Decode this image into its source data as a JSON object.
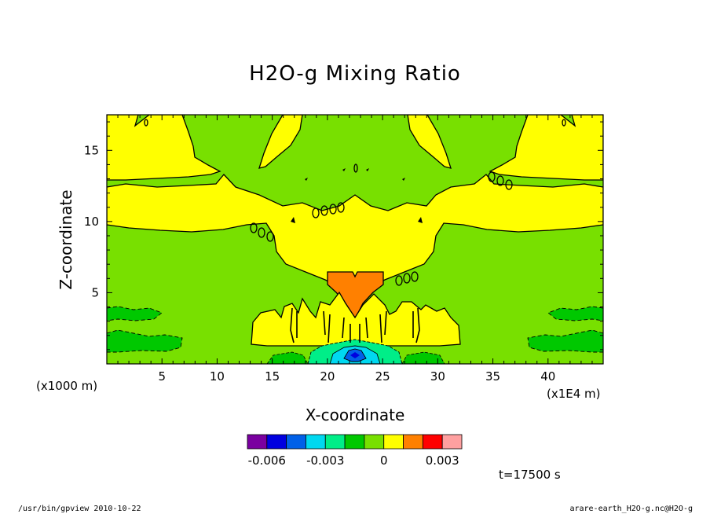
{
  "chart_data": {
    "type": "heatmap",
    "title": "H2O-g Mixing Ratio",
    "xlabel": "X-coordinate",
    "ylabel": "Z-coordinate",
    "x_unit_left": "(x1000 m)",
    "x_unit_right": "(x1E4 m)",
    "xlim": [
      0,
      45
    ],
    "ylim": [
      0,
      17.5
    ],
    "xticks": [
      "5",
      "10",
      "15",
      "20",
      "25",
      "30",
      "35",
      "40"
    ],
    "xtick_values": [
      5,
      10,
      15,
      20,
      25,
      30,
      35,
      40
    ],
    "yticks": [
      "5",
      "10",
      "15"
    ],
    "ytick_values": [
      5,
      10,
      15
    ],
    "colorbar": {
      "colors": [
        "#7a00a0",
        "#0000e0",
        "#0060e8",
        "#00d8f0",
        "#00ee88",
        "#00c800",
        "#78e000",
        "#ffff00",
        "#ff8000",
        "#ff0000",
        "#ffa0a0"
      ],
      "tick_labels": [
        "-0.006",
        "-0.003",
        "0",
        "0.003"
      ],
      "tick_values": [
        -0.006,
        -0.003,
        0,
        0.003
      ]
    },
    "regions": [
      {
        "level": "background",
        "color": "#78e000"
      },
      {
        "level": "positive-1",
        "color": "#ffff00"
      },
      {
        "level": "positive-2",
        "color": "#ff8000"
      },
      {
        "level": "negative-1",
        "color": "#00c800"
      },
      {
        "level": "negative-2",
        "color": "#00ee88"
      },
      {
        "level": "negative-3",
        "color": "#00d8f0"
      },
      {
        "level": "negative-4",
        "color": "#0060e8"
      },
      {
        "level": "negative-5",
        "color": "#0000e0"
      }
    ],
    "time_label": "t=17500 s",
    "grid": false
  },
  "footer": {
    "left": "/usr/bin/gpview  2010-10-22",
    "right": "arare-earth_H2O-g.nc@H2O-g"
  }
}
